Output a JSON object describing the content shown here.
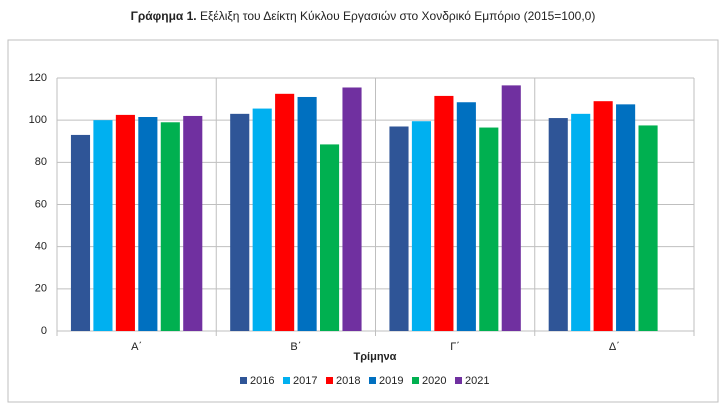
{
  "chart_data": {
    "type": "bar",
    "title_prefix": "Γράφημα 1.",
    "title": "Εξέλιξη του Δείκτη Κύκλου Εργασιών στο Χονδρικό Εμπόριο (2015=100,0)",
    "x_label": "Τρίμηνα",
    "categories": [
      "Α΄",
      "Β΄",
      "Γ΄",
      "Δ΄"
    ],
    "series": [
      {
        "name": "2016",
        "color": "#2f5597",
        "values": [
          93,
          103,
          97,
          101
        ]
      },
      {
        "name": "2017",
        "color": "#00b0f0",
        "values": [
          100,
          105.5,
          99.5,
          103
        ]
      },
      {
        "name": "2018",
        "color": "#ff0000",
        "values": [
          102.5,
          112.5,
          111.5,
          109
        ]
      },
      {
        "name": "2019",
        "color": "#0070c0",
        "values": [
          101.5,
          111,
          108.5,
          107.5
        ]
      },
      {
        "name": "2020",
        "color": "#00b050",
        "values": [
          99,
          88.5,
          96.5,
          97.5
        ]
      },
      {
        "name": "2021",
        "color": "#7030a0",
        "values": [
          102,
          115.5,
          116.5,
          null
        ]
      }
    ],
    "ylim": [
      0,
      120
    ],
    "yticks": [
      0,
      20,
      40,
      60,
      80,
      100,
      120
    ],
    "grid": true
  }
}
